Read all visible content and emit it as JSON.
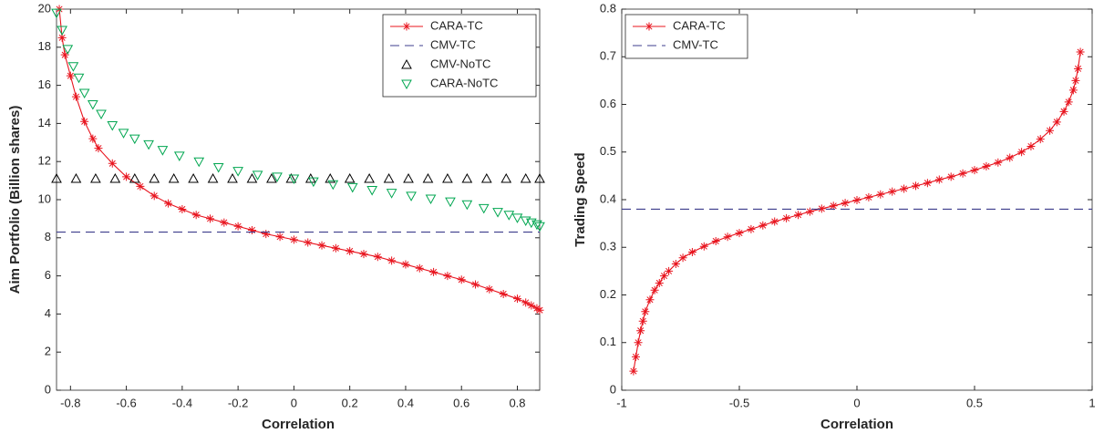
{
  "chart_data": [
    {
      "type": "line",
      "xlabel": "Correlation",
      "ylabel": "Aim Portfolio (Billion shares)",
      "xlim": [
        -0.85,
        0.88
      ],
      "ylim": [
        0,
        20
      ],
      "xticks": [
        -0.8,
        -0.6,
        -0.4,
        -0.2,
        0,
        0.2,
        0.4,
        0.6,
        0.8
      ],
      "yticks": [
        0,
        2,
        4,
        6,
        8,
        10,
        12,
        14,
        16,
        18,
        20
      ],
      "legend": "upper right",
      "series": [
        {
          "name": "CARA-TC",
          "color": "#e8141e",
          "line": "solid",
          "marker": "asterisk",
          "x": [
            -0.84,
            -0.83,
            -0.82,
            -0.8,
            -0.78,
            -0.75,
            -0.72,
            -0.7,
            -0.65,
            -0.6,
            -0.55,
            -0.5,
            -0.45,
            -0.4,
            -0.35,
            -0.3,
            -0.25,
            -0.2,
            -0.15,
            -0.1,
            -0.05,
            0,
            0.05,
            0.1,
            0.15,
            0.2,
            0.25,
            0.3,
            0.35,
            0.4,
            0.45,
            0.5,
            0.55,
            0.6,
            0.65,
            0.7,
            0.75,
            0.8,
            0.83,
            0.85,
            0.87,
            0.88
          ],
          "values": [
            20,
            18.5,
            17.6,
            16.5,
            15.4,
            14.1,
            13.2,
            12.7,
            11.9,
            11.2,
            10.7,
            10.2,
            9.8,
            9.5,
            9.2,
            9.0,
            8.8,
            8.6,
            8.4,
            8.2,
            8.05,
            7.9,
            7.75,
            7.6,
            7.45,
            7.3,
            7.15,
            7.0,
            6.8,
            6.6,
            6.4,
            6.2,
            6.0,
            5.8,
            5.55,
            5.3,
            5.05,
            4.8,
            4.6,
            4.45,
            4.3,
            4.2
          ]
        },
        {
          "name": "CMV-TC",
          "color": "#3c3c8c",
          "line": "dashed",
          "marker": "none",
          "x": [
            -0.85,
            0.88
          ],
          "values": [
            8.3,
            8.3
          ]
        },
        {
          "name": "CMV-NoTC",
          "color": "#000000",
          "line": "none",
          "marker": "triangle-up",
          "x": [
            -0.85,
            -0.78,
            -0.71,
            -0.64,
            -0.57,
            -0.5,
            -0.43,
            -0.36,
            -0.29,
            -0.22,
            -0.15,
            -0.08,
            -0.01,
            0.06,
            0.13,
            0.2,
            0.27,
            0.34,
            0.41,
            0.48,
            0.55,
            0.62,
            0.69,
            0.76,
            0.83,
            0.88
          ],
          "values": [
            11.1,
            11.1,
            11.1,
            11.1,
            11.1,
            11.1,
            11.1,
            11.1,
            11.1,
            11.1,
            11.1,
            11.1,
            11.1,
            11.1,
            11.1,
            11.1,
            11.1,
            11.1,
            11.1,
            11.1,
            11.1,
            11.1,
            11.1,
            11.1,
            11.1,
            11.1
          ]
        },
        {
          "name": "CARA-NoTC",
          "color": "#00a650",
          "line": "none",
          "marker": "triangle-down",
          "x": [
            -0.85,
            -0.83,
            -0.81,
            -0.79,
            -0.77,
            -0.75,
            -0.72,
            -0.69,
            -0.65,
            -0.61,
            -0.57,
            -0.52,
            -0.47,
            -0.41,
            -0.34,
            -0.27,
            -0.2,
            -0.13,
            -0.06,
            0,
            0.07,
            0.14,
            0.21,
            0.28,
            0.35,
            0.42,
            0.49,
            0.56,
            0.62,
            0.68,
            0.73,
            0.77,
            0.8,
            0.83,
            0.85,
            0.87,
            0.88
          ],
          "values": [
            19.8,
            18.9,
            17.9,
            17.0,
            16.4,
            15.6,
            15.0,
            14.5,
            13.9,
            13.5,
            13.2,
            12.9,
            12.6,
            12.3,
            12.0,
            11.7,
            11.5,
            11.3,
            11.2,
            11.1,
            10.95,
            10.8,
            10.65,
            10.5,
            10.35,
            10.2,
            10.05,
            9.9,
            9.75,
            9.55,
            9.35,
            9.2,
            9.05,
            8.9,
            8.8,
            8.7,
            8.6
          ]
        }
      ]
    },
    {
      "type": "line",
      "xlabel": "Correlation",
      "ylabel": "Trading Speed",
      "xlim": [
        -1,
        1
      ],
      "ylim": [
        0,
        0.8
      ],
      "xticks": [
        -1,
        -0.5,
        0,
        0.5,
        1
      ],
      "yticks": [
        0,
        0.1,
        0.2,
        0.3,
        0.4,
        0.5,
        0.6,
        0.7,
        0.8
      ],
      "legend": "upper left",
      "series": [
        {
          "name": "CARA-TC",
          "color": "#e8141e",
          "line": "solid",
          "marker": "asterisk",
          "x": [
            -0.95,
            -0.94,
            -0.93,
            -0.92,
            -0.91,
            -0.9,
            -0.88,
            -0.86,
            -0.84,
            -0.82,
            -0.8,
            -0.77,
            -0.74,
            -0.7,
            -0.65,
            -0.6,
            -0.55,
            -0.5,
            -0.45,
            -0.4,
            -0.35,
            -0.3,
            -0.25,
            -0.2,
            -0.15,
            -0.1,
            -0.05,
            0,
            0.05,
            0.1,
            0.15,
            0.2,
            0.25,
            0.3,
            0.35,
            0.4,
            0.45,
            0.5,
            0.55,
            0.6,
            0.65,
            0.7,
            0.74,
            0.78,
            0.82,
            0.85,
            0.88,
            0.9,
            0.92,
            0.93,
            0.94,
            0.95
          ],
          "values": [
            0.04,
            0.07,
            0.1,
            0.125,
            0.145,
            0.165,
            0.19,
            0.21,
            0.225,
            0.24,
            0.25,
            0.265,
            0.278,
            0.29,
            0.302,
            0.313,
            0.322,
            0.33,
            0.338,
            0.346,
            0.354,
            0.361,
            0.368,
            0.375,
            0.381,
            0.387,
            0.393,
            0.399,
            0.405,
            0.411,
            0.417,
            0.423,
            0.429,
            0.435,
            0.442,
            0.448,
            0.455,
            0.462,
            0.47,
            0.478,
            0.488,
            0.5,
            0.512,
            0.527,
            0.545,
            0.563,
            0.585,
            0.605,
            0.63,
            0.65,
            0.675,
            0.71
          ]
        },
        {
          "name": "CMV-TC",
          "color": "#3c3c8c",
          "line": "dashed",
          "marker": "none",
          "x": [
            -1,
            1
          ],
          "values": [
            0.38,
            0.38
          ]
        }
      ]
    }
  ]
}
